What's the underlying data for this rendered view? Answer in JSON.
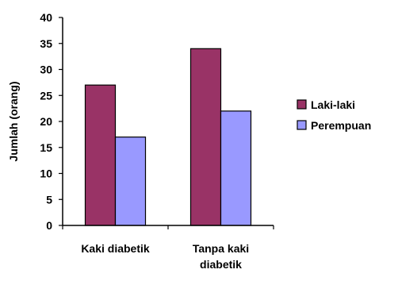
{
  "chart_data": {
    "type": "bar",
    "title": "",
    "xlabel": "",
    "ylabel": "Jumlah (orang)",
    "categories": [
      [
        "Kaki diabetik"
      ],
      [
        "Tanpa kaki",
        "diabetik"
      ]
    ],
    "series": [
      {
        "name": "Laki-laki",
        "values": [
          27,
          34
        ],
        "color": "#993366"
      },
      {
        "name": "Perempuan",
        "values": [
          17,
          22
        ],
        "color": "#9999FF"
      }
    ],
    "ylim": [
      0,
      40
    ],
    "yticks": [
      "0",
      "5",
      "10",
      "15",
      "20",
      "25",
      "30",
      "35",
      "40"
    ],
    "grid": false,
    "legend_position": "right",
    "bar_border_color": "#000000"
  }
}
